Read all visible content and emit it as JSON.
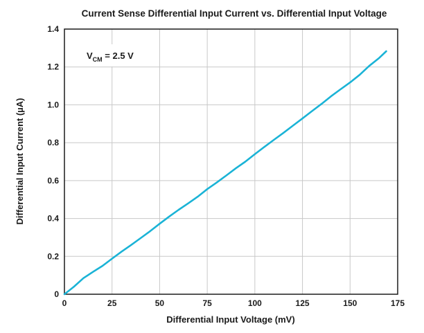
{
  "chart_data": {
    "type": "line",
    "title": "Current Sense Differential Input Current vs. Differential Input Voltage",
    "xlabel": "Differential Input Voltage (mV)",
    "ylabel": "Differential Input Current (µA)",
    "xlim": [
      0,
      175
    ],
    "ylim": [
      0,
      1.4
    ],
    "xticks": [
      0,
      25,
      50,
      75,
      100,
      125,
      150,
      175
    ],
    "yticks": [
      0,
      0.2,
      0.4,
      0.6,
      0.8,
      1.0,
      1.2,
      1.4
    ],
    "xtick_labels": [
      "0",
      "25",
      "50",
      "75",
      "100",
      "125",
      "150",
      "175"
    ],
    "ytick_labels": [
      "0",
      "0.2",
      "0.4",
      "0.6",
      "0.8",
      "1.0",
      "1.2",
      "1.4"
    ],
    "grid": true,
    "annotation": {
      "main": "V",
      "sub": "CM",
      "suffix": " = 2.5 V"
    },
    "series": [
      {
        "color": "#1ab3d6",
        "x": [
          0,
          5,
          10,
          15,
          20,
          25,
          30,
          35,
          40,
          45,
          50,
          55,
          60,
          65,
          70,
          75,
          80,
          85,
          90,
          95,
          100,
          105,
          110,
          115,
          120,
          125,
          130,
          135,
          140,
          145,
          150,
          155,
          160,
          165,
          169
        ],
        "y": [
          0,
          0.04,
          0.085,
          0.118,
          0.15,
          0.188,
          0.225,
          0.26,
          0.296,
          0.333,
          0.372,
          0.41,
          0.446,
          0.48,
          0.515,
          0.555,
          0.59,
          0.627,
          0.665,
          0.7,
          0.74,
          0.778,
          0.815,
          0.852,
          0.89,
          0.928,
          0.967,
          1.005,
          1.045,
          1.082,
          1.118,
          1.158,
          1.205,
          1.245,
          1.283
        ]
      }
    ]
  }
}
